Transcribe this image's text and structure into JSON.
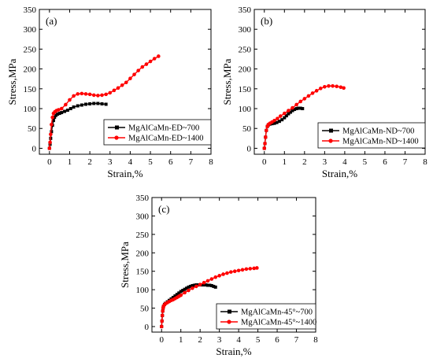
{
  "chart_data": [
    {
      "type": "line",
      "panel_label": "(a)",
      "xlabel": "Strain,%",
      "ylabel": "Stress,MPa",
      "xlim": [
        -0.5,
        8
      ],
      "ylim": [
        -15,
        350
      ],
      "xticks": [
        0,
        1,
        2,
        3,
        4,
        5,
        6,
        7,
        8
      ],
      "yticks": [
        0,
        50,
        100,
        150,
        200,
        250,
        300,
        350
      ],
      "xtick_labels": [
        "0",
        "1",
        "2",
        "3",
        "4",
        "5",
        "6",
        "7",
        "8"
      ],
      "ytick_labels": [
        "0",
        "50",
        "100",
        "150",
        "200",
        "250",
        "300",
        "350"
      ],
      "legend_position": "center-right",
      "grid": false,
      "series": [
        {
          "name": "MgAlCaMn-ED~700",
          "color": "#000000",
          "marker": "square",
          "x": [
            0,
            0.03,
            0.06,
            0.1,
            0.15,
            0.2,
            0.25,
            0.32,
            0.4,
            0.5,
            0.6,
            0.75,
            0.9,
            1.05,
            1.2,
            1.4,
            1.6,
            1.8,
            2.0,
            2.2,
            2.4,
            2.6,
            2.8
          ],
          "y": [
            0,
            10,
            25,
            42,
            58,
            70,
            78,
            83,
            86,
            88,
            90,
            93,
            96,
            100,
            104,
            107,
            109,
            111,
            112,
            113,
            113,
            112,
            111
          ]
        },
        {
          "name": "MgAlCaMn-ED~1400",
          "color": "#ff0000",
          "marker": "circle",
          "x": [
            0,
            0.03,
            0.06,
            0.1,
            0.15,
            0.2,
            0.27,
            0.35,
            0.45,
            0.6,
            0.8,
            1.0,
            1.2,
            1.4,
            1.6,
            1.8,
            2.0,
            2.2,
            2.4,
            2.6,
            2.8,
            3.0,
            3.2,
            3.4,
            3.6,
            3.8,
            4.0,
            4.2,
            4.4,
            4.6,
            4.8,
            5.0,
            5.2,
            5.4
          ],
          "y": [
            0,
            15,
            35,
            60,
            78,
            88,
            92,
            95,
            97,
            100,
            110,
            122,
            132,
            137,
            138,
            137,
            136,
            134,
            133,
            134,
            136,
            140,
            146,
            152,
            159,
            166,
            176,
            186,
            196,
            205,
            212,
            219,
            226,
            232
          ]
        }
      ]
    },
    {
      "type": "line",
      "panel_label": "(b)",
      "xlabel": "Strain,%",
      "ylabel": "Stress,MPa",
      "xlim": [
        -0.5,
        8
      ],
      "ylim": [
        -15,
        350
      ],
      "xticks": [
        0,
        1,
        2,
        3,
        4,
        5,
        6,
        7,
        8
      ],
      "yticks": [
        0,
        50,
        100,
        150,
        200,
        250,
        300,
        350
      ],
      "xtick_labels": [
        "0",
        "1",
        "2",
        "3",
        "4",
        "5",
        "6",
        "7",
        "8"
      ],
      "ytick_labels": [
        "0",
        "50",
        "100",
        "150",
        "200",
        "250",
        "300",
        "350"
      ],
      "legend_position": "center-right",
      "grid": false,
      "series": [
        {
          "name": "MgAlCaMn-ND~700",
          "color": "#000000",
          "marker": "square",
          "x": [
            0,
            0.03,
            0.06,
            0.1,
            0.15,
            0.2,
            0.28,
            0.38,
            0.5,
            0.62,
            0.75,
            0.88,
            1.0,
            1.1,
            1.2,
            1.3,
            1.4,
            1.5,
            1.6,
            1.7,
            1.8,
            1.9
          ],
          "y": [
            0,
            12,
            28,
            45,
            55,
            59,
            61,
            62,
            63,
            65,
            68,
            72,
            77,
            82,
            87,
            91,
            95,
            98,
            100,
            101,
            101,
            100
          ]
        },
        {
          "name": "MgAlCaMn-ND~1400",
          "color": "#ff0000",
          "marker": "circle",
          "x": [
            0,
            0.03,
            0.06,
            0.1,
            0.15,
            0.2,
            0.28,
            0.38,
            0.5,
            0.65,
            0.8,
            1.0,
            1.2,
            1.4,
            1.6,
            1.8,
            2.0,
            2.2,
            2.4,
            2.6,
            2.8,
            3.0,
            3.2,
            3.4,
            3.6,
            3.8,
            3.95
          ],
          "y": [
            0,
            12,
            28,
            45,
            55,
            60,
            63,
            66,
            70,
            75,
            81,
            88,
            95,
            102,
            110,
            118,
            125,
            132,
            139,
            145,
            151,
            155,
            157,
            157,
            156,
            154,
            152
          ]
        }
      ]
    },
    {
      "type": "line",
      "panel_label": "(c)",
      "xlabel": "Strain,%",
      "ylabel": "Stress,MPa",
      "xlim": [
        -0.5,
        8
      ],
      "ylim": [
        -15,
        350
      ],
      "xticks": [
        0,
        1,
        2,
        3,
        4,
        5,
        6,
        7,
        8
      ],
      "yticks": [
        0,
        50,
        100,
        150,
        200,
        250,
        300,
        350
      ],
      "xtick_labels": [
        "0",
        "1",
        "2",
        "3",
        "4",
        "5",
        "6",
        "7",
        "8"
      ],
      "ytick_labels": [
        "0",
        "50",
        "100",
        "150",
        "200",
        "250",
        "300",
        "350"
      ],
      "legend_position": "center-right",
      "grid": false,
      "series": [
        {
          "name": "MgAlCaMn-45°~700",
          "color": "#000000",
          "marker": "square",
          "x": [
            0,
            0.02,
            0.04,
            0.06,
            0.08,
            0.1,
            0.15,
            0.2,
            0.3,
            0.4,
            0.5,
            0.6,
            0.7,
            0.8,
            0.9,
            1.0,
            1.1,
            1.2,
            1.3,
            1.4,
            1.5,
            1.6,
            1.7,
            1.8,
            1.9,
            2.0,
            2.1,
            2.2,
            2.3,
            2.4,
            2.5,
            2.6,
            2.7,
            2.8
          ],
          "y": [
            0,
            15,
            30,
            42,
            50,
            55,
            60,
            63,
            67,
            71,
            75,
            79,
            83,
            87,
            91,
            95,
            98,
            101,
            104,
            107,
            109,
            111,
            112,
            113,
            113,
            113,
            113,
            113,
            113,
            112,
            112,
            111,
            109,
            107
          ]
        },
        {
          "name": "MgAlCaMn-45°~1400",
          "color": "#ff0000",
          "marker": "circle",
          "x": [
            0,
            0.02,
            0.04,
            0.06,
            0.08,
            0.1,
            0.15,
            0.2,
            0.3,
            0.4,
            0.5,
            0.6,
            0.7,
            0.8,
            0.9,
            1.0,
            1.2,
            1.4,
            1.6,
            1.8,
            2.0,
            2.2,
            2.4,
            2.6,
            2.8,
            3.0,
            3.2,
            3.4,
            3.6,
            3.8,
            4.0,
            4.2,
            4.4,
            4.6,
            4.8,
            4.95
          ],
          "y": [
            0,
            15,
            30,
            42,
            50,
            55,
            59,
            62,
            65,
            68,
            71,
            73,
            76,
            79,
            82,
            85,
            92,
            98,
            104,
            109,
            114,
            119,
            124,
            129,
            134,
            138,
            142,
            145,
            148,
            150,
            152,
            154,
            156,
            157,
            158,
            159
          ]
        }
      ]
    }
  ]
}
